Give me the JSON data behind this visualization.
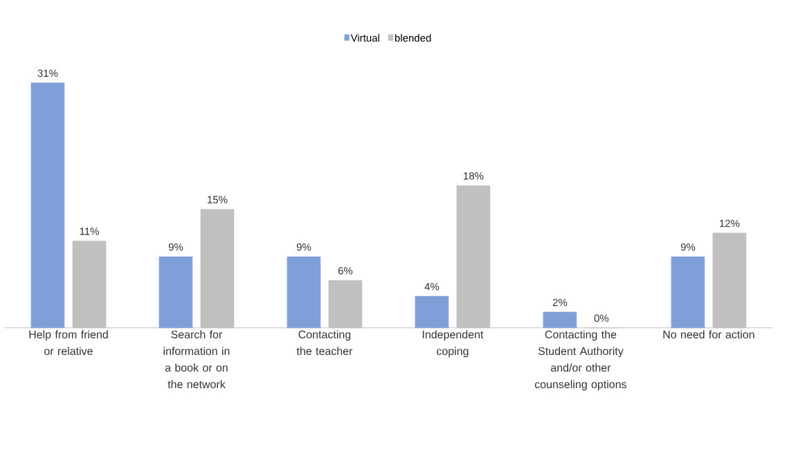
{
  "chart_data": {
    "type": "bar",
    "categories": [
      "Help from friend or relative",
      "Search for information in a book or on the network",
      "Contacting the teacher",
      "Independent coping",
      "Contacting the Student Authority and/or other counseling options",
      "No need for action"
    ],
    "series": [
      {
        "name": "Virtual",
        "color": "#7f9fd8",
        "values": [
          31,
          9,
          9,
          4,
          2,
          9
        ],
        "value_labels": [
          "31%",
          "9%",
          "9%",
          "4%",
          "2%",
          "9%"
        ]
      },
      {
        "name": "blended",
        "color": "#c0c0c0",
        "values": [
          11,
          15,
          6,
          18,
          0,
          12
        ],
        "value_labels": [
          "11%",
          "15%",
          "6%",
          "18%",
          "0%",
          "12%"
        ]
      }
    ],
    "legend": "top",
    "grid": false
  }
}
